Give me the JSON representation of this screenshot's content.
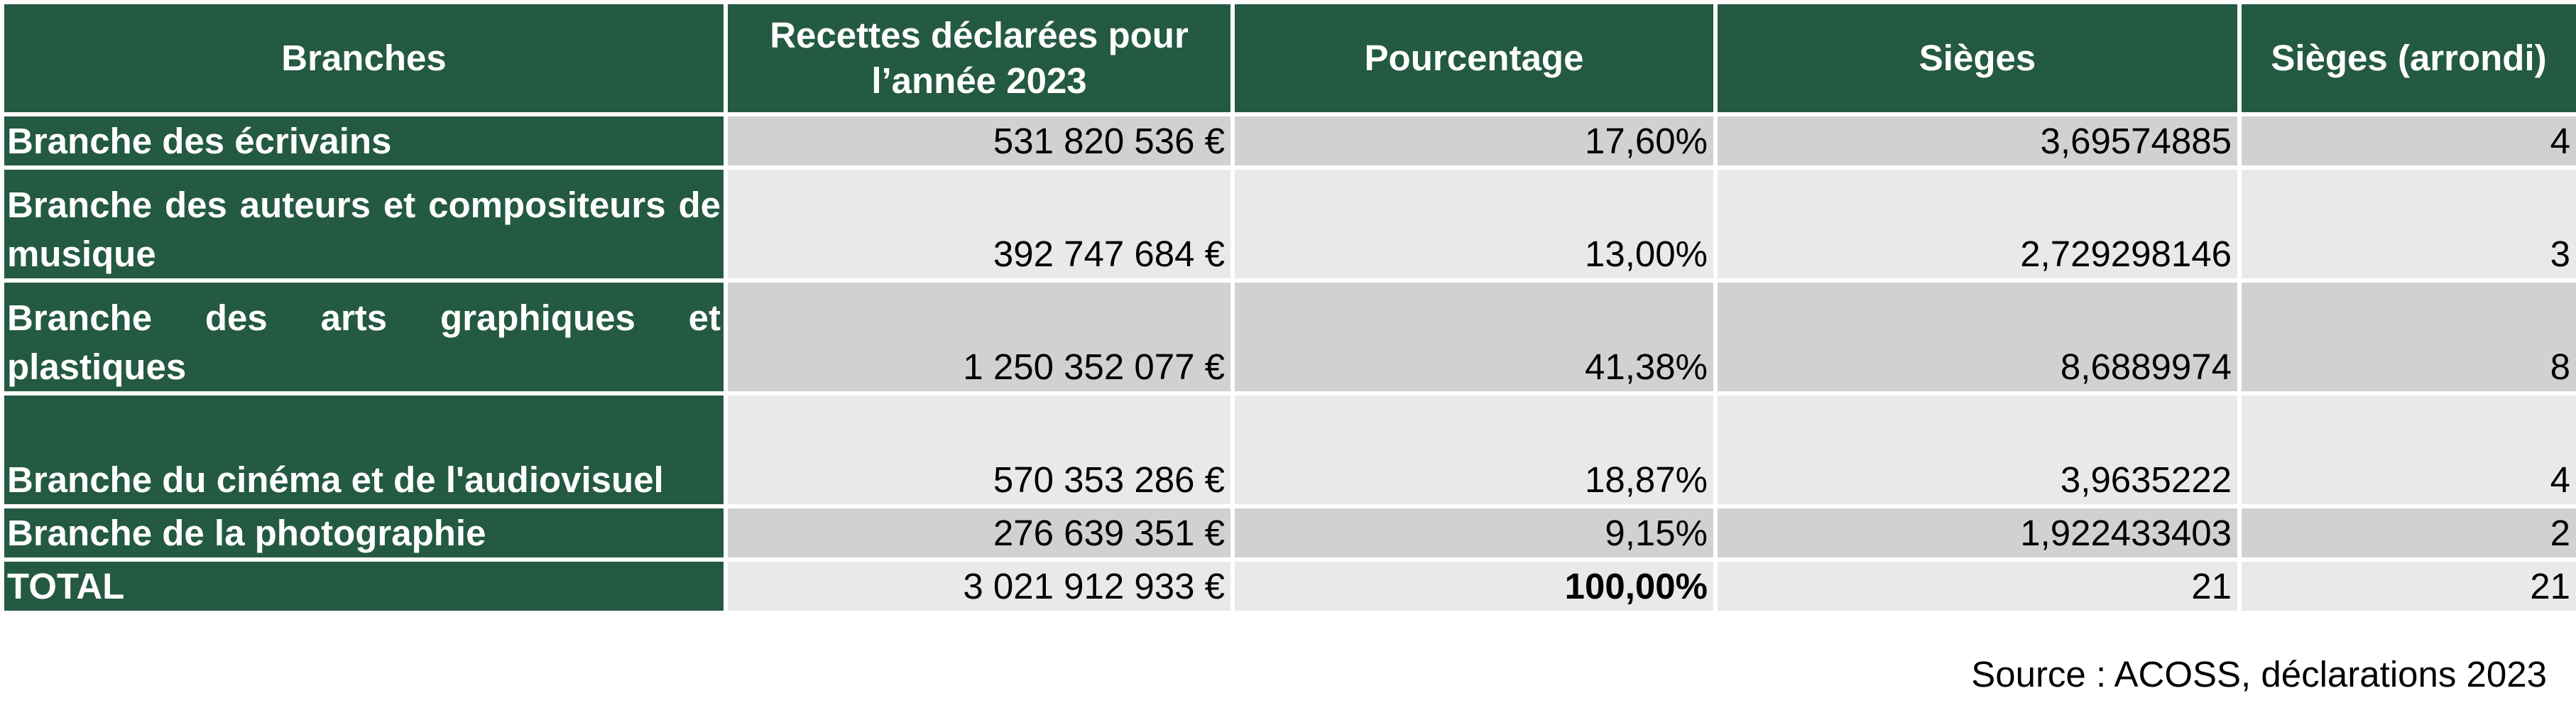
{
  "headers": [
    "Branches",
    "Recettes déclarées pour l’année 2023",
    "Pourcentage",
    "Sièges",
    "Sièges (arrondi)"
  ],
  "rows": [
    {
      "branch": "Branche des écrivains",
      "recettes": "531 820 536 €",
      "pourcentage": "17,60%",
      "sieges": "3,69574885",
      "arrondi": "4"
    },
    {
      "branch": "Branche des auteurs et compositeurs de musique",
      "recettes": "392 747 684 €",
      "pourcentage": "13,00%",
      "sieges": "2,729298146",
      "arrondi": "3"
    },
    {
      "branch": "Branche des arts graphiques et plastiques",
      "recettes": "1 250 352 077 €",
      "pourcentage": "41,38%",
      "sieges": "8,6889974",
      "arrondi": "8"
    },
    {
      "branch": "Branche du cinéma et de l'audiovisuel",
      "recettes": "570 353 286 €",
      "pourcentage": "18,87%",
      "sieges": "3,9635222",
      "arrondi": "4"
    },
    {
      "branch": "Branche de la photographie",
      "recettes": "276 639 351 €",
      "pourcentage": "9,15%",
      "sieges": "1,922433403",
      "arrondi": "2"
    }
  ],
  "total": {
    "label": "TOTAL",
    "recettes": "3 021 912 933 €",
    "pourcentage": "100,00%",
    "sieges": "21",
    "arrondi": "21"
  },
  "source": "Source : ACOSS, déclarations 2023",
  "colors": {
    "header_bg": "#245942",
    "row_dark": "#d0d2d1",
    "row_light": "#e8e9e8"
  }
}
